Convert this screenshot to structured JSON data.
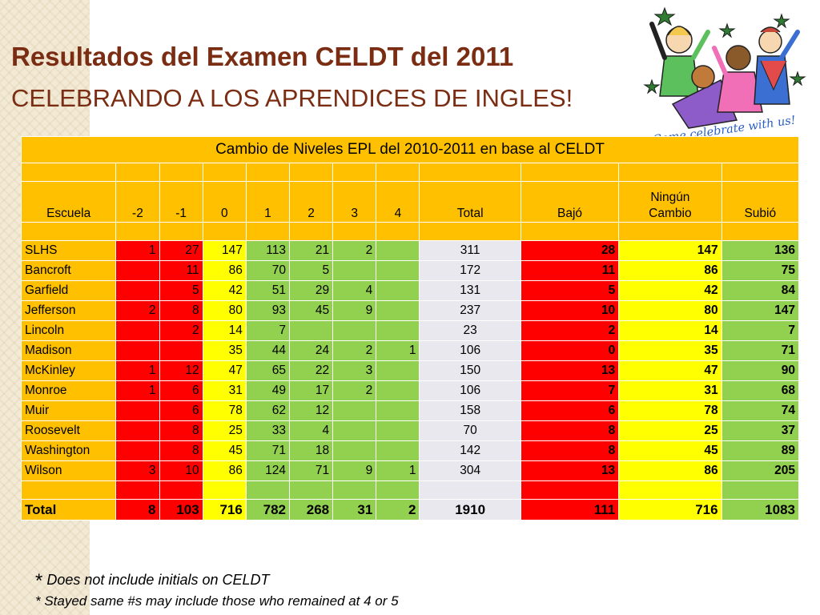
{
  "title": {
    "line1": "Resultados del Examen CELDT del 2011",
    "line2": "CELEBRANDO A LOS APRENDICES DE INGLES!"
  },
  "clipart": {
    "caption": "Come celebrate with us!",
    "icon": "celebration-clipart"
  },
  "table": {
    "caption": "Cambio de Niveles EPL del 2010-2011 en base al CELDT",
    "headers": [
      "Escuela",
      "-2",
      "-1",
      "0",
      "1",
      "2",
      "3",
      "4",
      "Total",
      "Bajó",
      "Ningún Cambio",
      "Subió"
    ],
    "rows": [
      {
        "school": "SLHS",
        "m2": "1",
        "m1": "27",
        "z": "147",
        "p1": "113",
        "p2": "21",
        "p3": "2",
        "p4": "",
        "total": "311",
        "bajo": "28",
        "ninguno": "147",
        "subio": "136"
      },
      {
        "school": "Bancroft",
        "m2": "",
        "m1": "11",
        "z": "86",
        "p1": "70",
        "p2": "5",
        "p3": "",
        "p4": "",
        "total": "172",
        "bajo": "11",
        "ninguno": "86",
        "subio": "75"
      },
      {
        "school": "Garfield",
        "m2": "",
        "m1": "5",
        "z": "42",
        "p1": "51",
        "p2": "29",
        "p3": "4",
        "p4": "",
        "total": "131",
        "bajo": "5",
        "ninguno": "42",
        "subio": "84"
      },
      {
        "school": "Jefferson",
        "m2": "2",
        "m1": "8",
        "z": "80",
        "p1": "93",
        "p2": "45",
        "p3": "9",
        "p4": "",
        "total": "237",
        "bajo": "10",
        "ninguno": "80",
        "subio": "147"
      },
      {
        "school": "Lincoln",
        "m2": "",
        "m1": "2",
        "z": "14",
        "p1": "7",
        "p2": "",
        "p3": "",
        "p4": "",
        "total": "23",
        "bajo": "2",
        "ninguno": "14",
        "subio": "7"
      },
      {
        "school": "Madison",
        "m2": "",
        "m1": "",
        "z": "35",
        "p1": "44",
        "p2": "24",
        "p3": "2",
        "p4": "1",
        "total": "106",
        "bajo": "0",
        "ninguno": "35",
        "subio": "71"
      },
      {
        "school": "McKinley",
        "m2": "1",
        "m1": "12",
        "z": "47",
        "p1": "65",
        "p2": "22",
        "p3": "3",
        "p4": "",
        "total": "150",
        "bajo": "13",
        "ninguno": "47",
        "subio": "90"
      },
      {
        "school": "Monroe",
        "m2": "1",
        "m1": "6",
        "z": "31",
        "p1": "49",
        "p2": "17",
        "p3": "2",
        "p4": "",
        "total": "106",
        "bajo": "7",
        "ninguno": "31",
        "subio": "68"
      },
      {
        "school": "Muir",
        "m2": "",
        "m1": "6",
        "z": "78",
        "p1": "62",
        "p2": "12",
        "p3": "",
        "p4": "",
        "total": "158",
        "bajo": "6",
        "ninguno": "78",
        "subio": "74"
      },
      {
        "school": "Roosevelt",
        "m2": "",
        "m1": "8",
        "z": "25",
        "p1": "33",
        "p2": "4",
        "p3": "",
        "p4": "",
        "total": "70",
        "bajo": "8",
        "ninguno": "25",
        "subio": "37"
      },
      {
        "school": "Washington",
        "m2": "",
        "m1": "8",
        "z": "45",
        "p1": "71",
        "p2": "18",
        "p3": "",
        "p4": "",
        "total": "142",
        "bajo": "8",
        "ninguno": "45",
        "subio": "89"
      },
      {
        "school": "Wilson",
        "m2": "3",
        "m1": "10",
        "z": "86",
        "p1": "124",
        "p2": "71",
        "p3": "9",
        "p4": "1",
        "total": "304",
        "bajo": "13",
        "ninguno": "86",
        "subio": "205"
      }
    ],
    "total": {
      "school": "Total",
      "m2": "8",
      "m1": "103",
      "z": "716",
      "p1": "782",
      "p2": "268",
      "p3": "31",
      "p4": "2",
      "total": "1910",
      "bajo": "111",
      "ninguno": "716",
      "subio": "1083"
    },
    "colors": {
      "orange": "#ffc000",
      "red": "#ff0000",
      "yellow": "#ffff00",
      "green": "#92d050",
      "gray": "#e8e8ee"
    }
  },
  "notes": {
    "star": "*",
    "note1": "Does not include initials on CELDT",
    "note2": "* Stayed same #s may include those who remained at 4 or 5"
  }
}
